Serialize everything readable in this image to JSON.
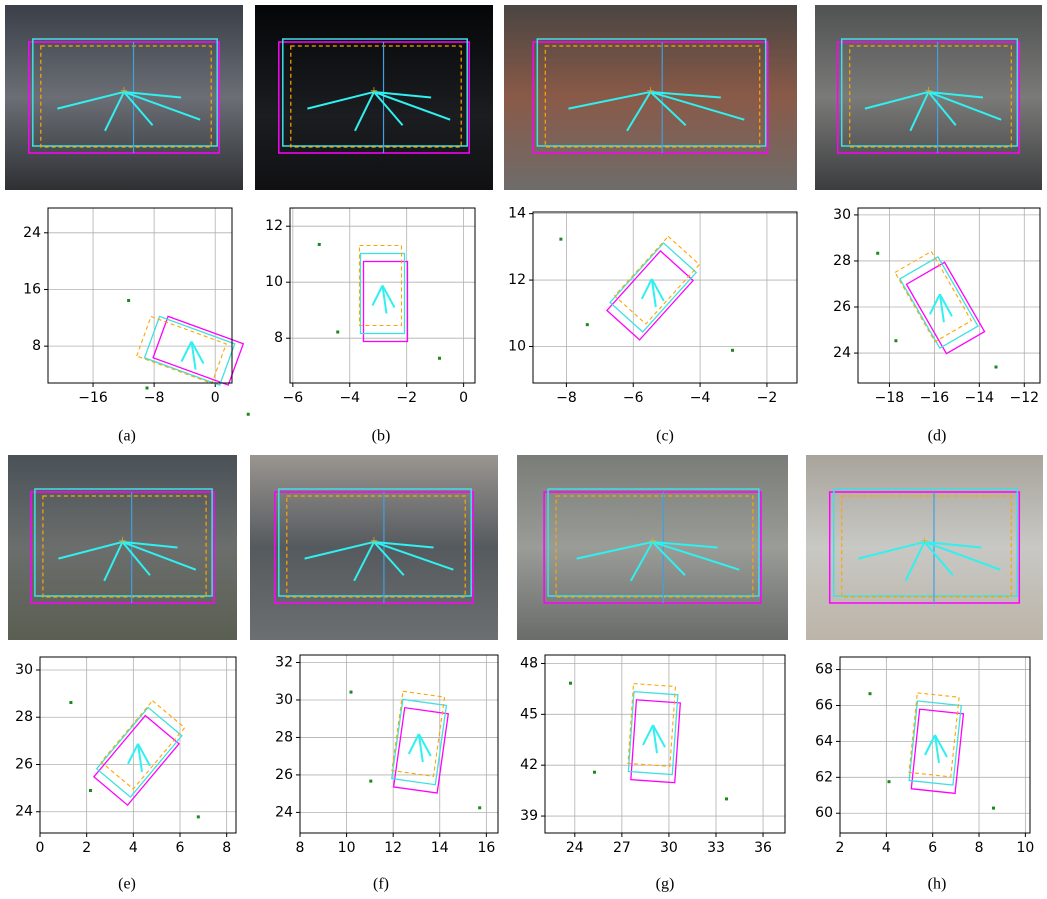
{
  "panels": [
    {
      "label": "(a)",
      "xlim": [
        -21.9,
        2.2
      ],
      "ylim": [
        2.8,
        27.5
      ],
      "xticks": [
        {
          "value": -16,
          "label": "−16"
        },
        {
          "value": -8,
          "label": "−8"
        },
        0
      ],
      "yticks": [
        8,
        16,
        24
      ]
    },
    {
      "label": "(b)",
      "xlim": [
        -6.1,
        0.4
      ],
      "ylim": [
        6.4,
        12.65
      ],
      "xticks": [
        {
          "value": -6,
          "label": "−6"
        },
        {
          "value": -4,
          "label": "−4"
        },
        {
          "value": -2,
          "label": "−2"
        },
        0
      ],
      "yticks": [
        8,
        10,
        12
      ]
    },
    {
      "label": "(c)",
      "xlim": [
        -9,
        -1.1
      ],
      "ylim": [
        8.9,
        14.05
      ],
      "xticks": [
        {
          "value": -8,
          "label": "−8"
        },
        {
          "value": -6,
          "label": "−6"
        },
        {
          "value": -4,
          "label": "−4"
        },
        {
          "value": -2,
          "label": "−2"
        }
      ],
      "yticks": [
        10,
        12,
        14
      ]
    },
    {
      "label": "(d)",
      "xlim": [
        -19.4,
        -11.3
      ],
      "ylim": [
        22.7,
        30.3
      ],
      "xticks": [
        {
          "value": -18,
          "label": "−18"
        },
        {
          "value": -16,
          "label": "−16"
        },
        {
          "value": -14,
          "label": "−14"
        },
        {
          "value": -12,
          "label": "−12"
        }
      ],
      "yticks": [
        24,
        26,
        28,
        30
      ]
    },
    {
      "label": "(e)",
      "xlim": [
        0,
        8.4
      ],
      "ylim": [
        23.1,
        30.55
      ],
      "xticks": [
        0,
        2,
        4,
        6,
        8
      ],
      "yticks": [
        24,
        26,
        28,
        30
      ]
    },
    {
      "label": "(f)",
      "xlim": [
        8,
        16.5
      ],
      "ylim": [
        22.9,
        32.4
      ],
      "xticks": [
        8,
        10,
        12,
        14,
        16
      ],
      "yticks": [
        24,
        26,
        28,
        30,
        32
      ]
    },
    {
      "label": "(g)",
      "xlim": [
        22.1,
        37.4
      ],
      "ylim": [
        38,
        48.5
      ],
      "xticks": [
        24,
        27,
        30,
        33,
        36
      ],
      "yticks": [
        39,
        42,
        45,
        48
      ]
    },
    {
      "label": "(h)",
      "xlim": [
        2,
        10.2
      ],
      "ylim": [
        58.9,
        68.7
      ],
      "xticks": [
        2,
        4,
        6,
        8,
        10
      ],
      "yticks": [
        60,
        62,
        64,
        66,
        68
      ]
    }
  ]
}
